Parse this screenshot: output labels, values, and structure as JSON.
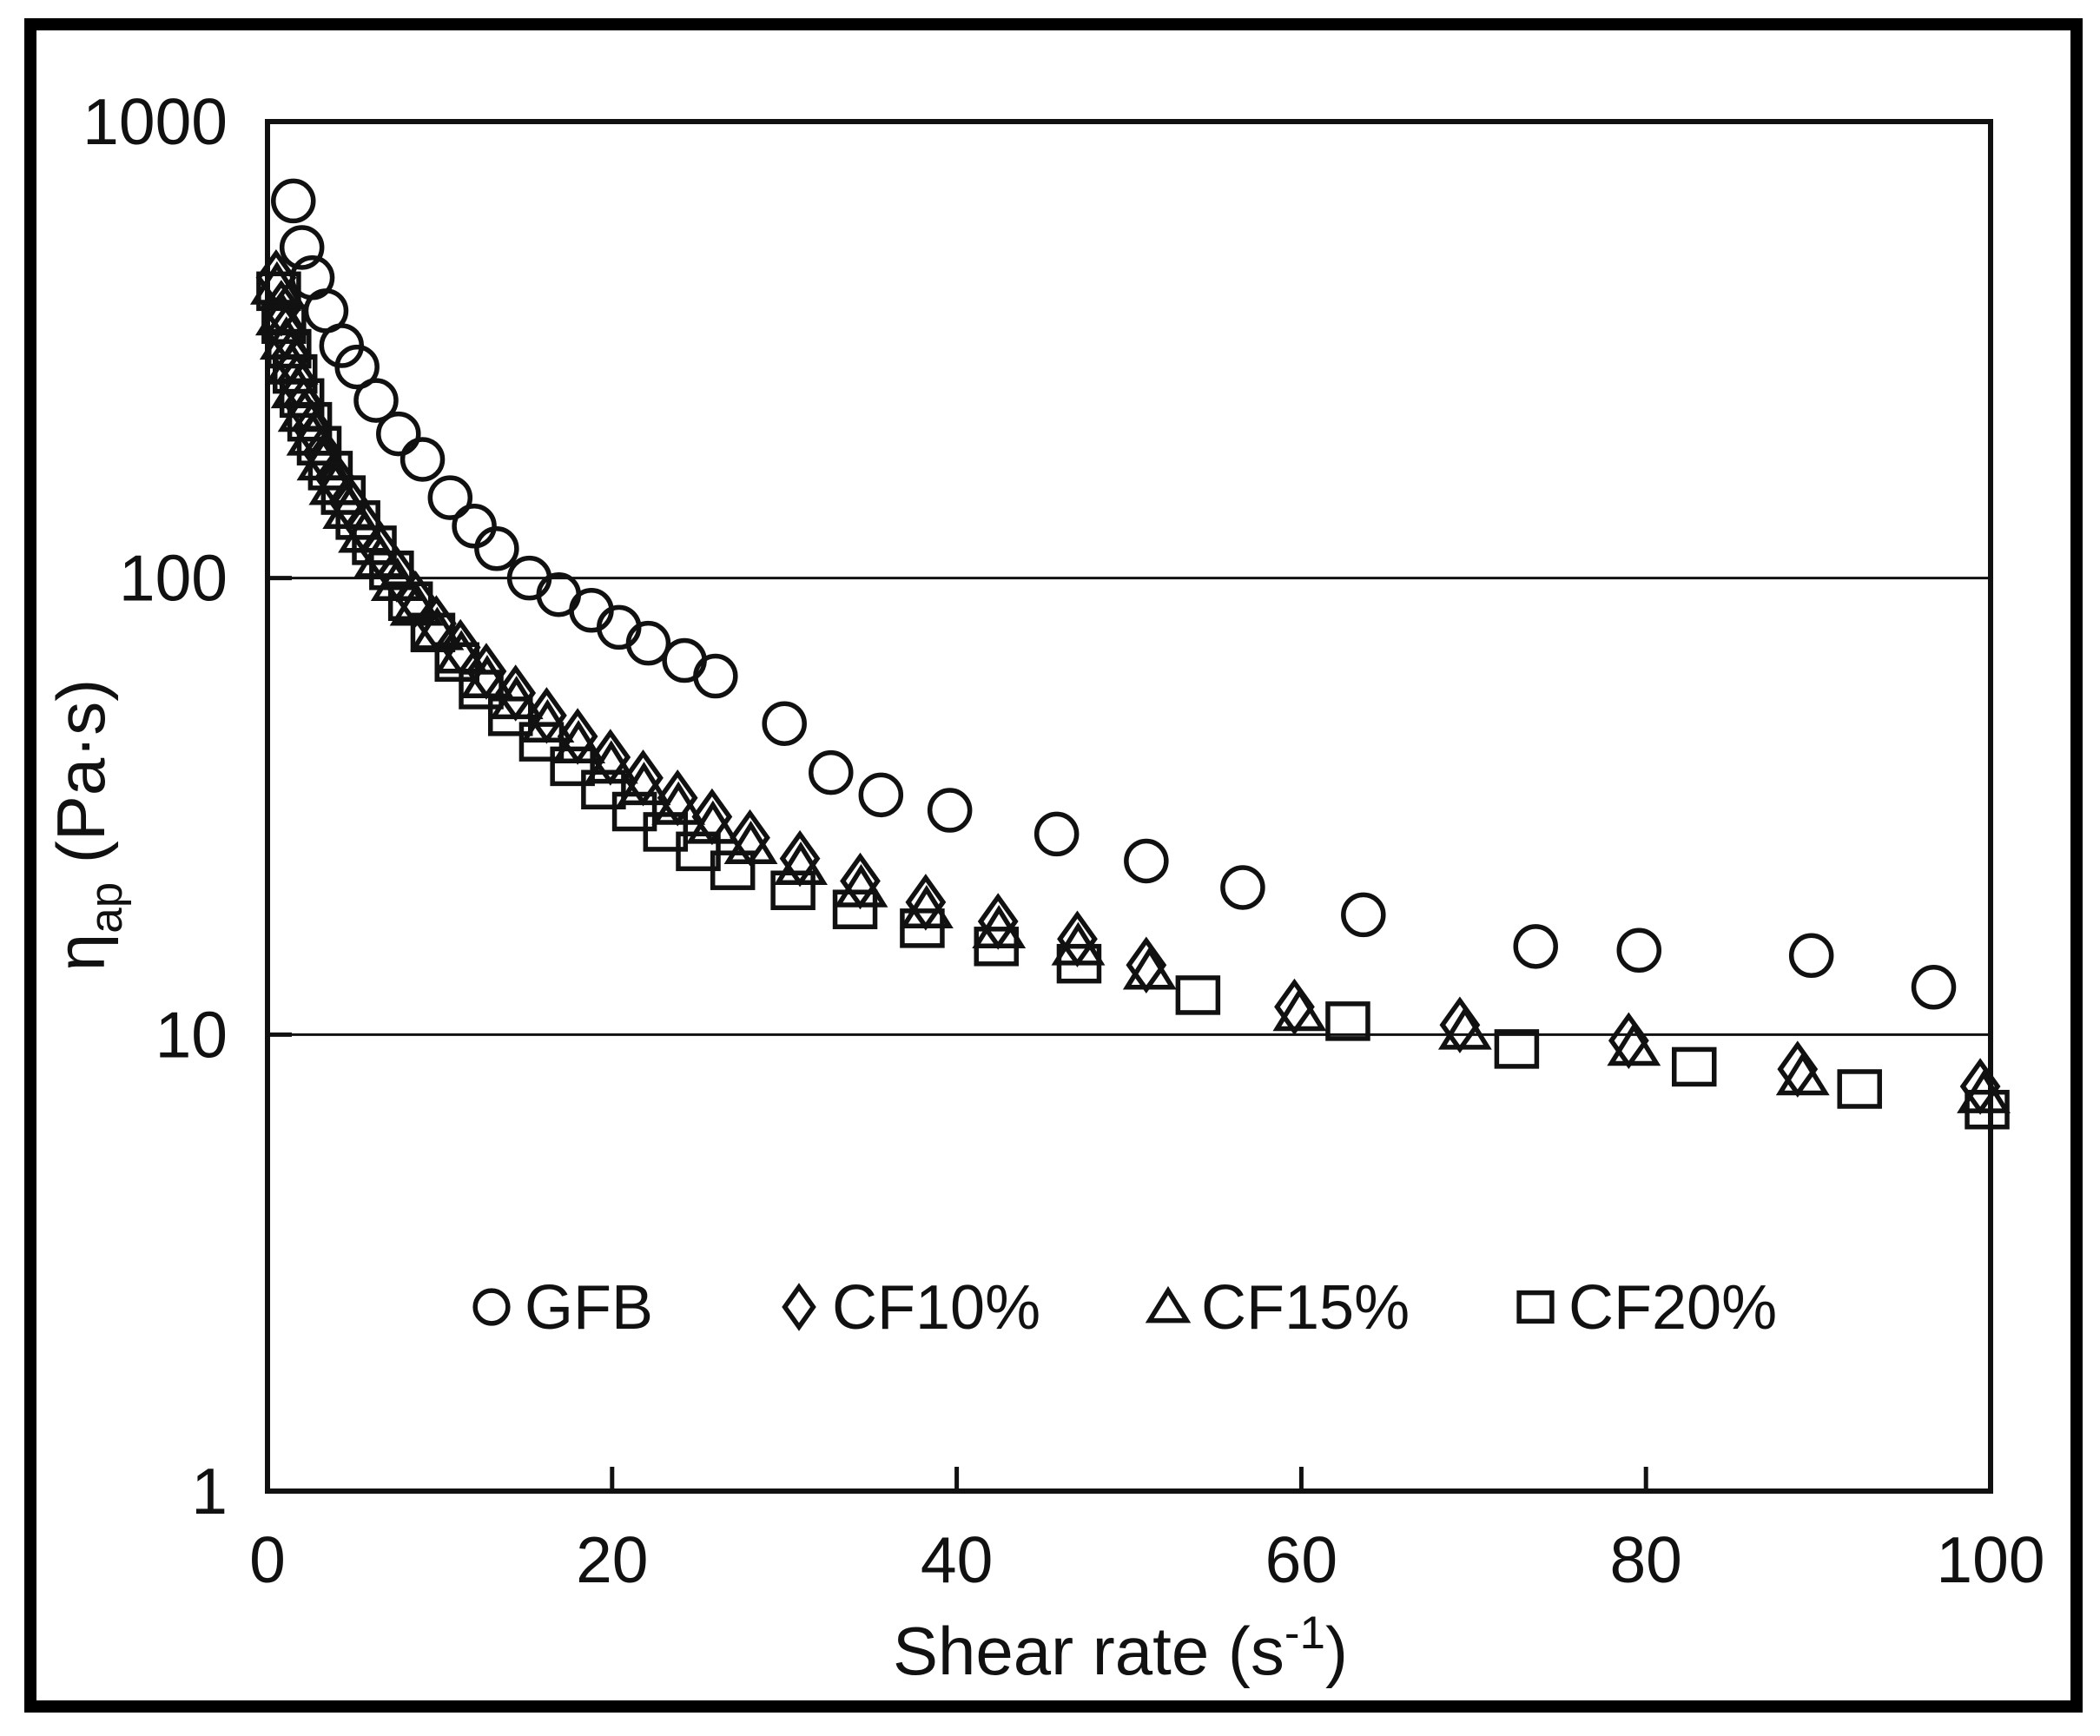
{
  "figure": {
    "background": "#ffffff",
    "frame_color": "#000000",
    "ink_color": "#111111"
  },
  "chart_data": {
    "type": "scatter",
    "title": "",
    "xlabel": {
      "base": "Shear rate (s",
      "sup": "-1",
      "close": ")"
    },
    "ylabel": {
      "base": "η",
      "sub": "ap",
      "rest": " (Pa·s)"
    },
    "x_axis": {
      "scale": "linear",
      "min": 0,
      "max": 100,
      "ticks": [
        0,
        20,
        40,
        60,
        80,
        100
      ],
      "tick_labels": [
        "0",
        "20",
        "40",
        "60",
        "80",
        "100"
      ]
    },
    "y_axis": {
      "scale": "log",
      "min": 1,
      "max": 1000,
      "ticks": [
        1,
        10,
        100,
        1000
      ],
      "tick_labels": [
        "1",
        "10",
        "100",
        "1000"
      ],
      "gridlines": [
        10,
        100
      ]
    },
    "grid": "horizontal-only",
    "legend": {
      "position": "inside-bottom",
      "items": [
        "GFB",
        "CF10%",
        "CF15%",
        "CF20%"
      ]
    },
    "series": [
      {
        "name": "GFB",
        "marker": "circle",
        "points": [
          [
            1.5,
            670
          ],
          [
            2.0,
            530
          ],
          [
            2.6,
            455
          ],
          [
            3.4,
            385
          ],
          [
            4.3,
            323
          ],
          [
            5.2,
            290
          ],
          [
            6.3,
            245
          ],
          [
            7.6,
            207
          ],
          [
            9.0,
            182
          ],
          [
            10.6,
            150
          ],
          [
            12.0,
            130
          ],
          [
            13.3,
            116
          ],
          [
            15.2,
            100
          ],
          [
            16.9,
            92
          ],
          [
            18.8,
            85
          ],
          [
            20.4,
            78
          ],
          [
            22.1,
            72
          ],
          [
            24.2,
            66
          ],
          [
            26.0,
            61
          ],
          [
            30.0,
            48
          ],
          [
            32.7,
            37.5
          ],
          [
            35.6,
            33.5
          ],
          [
            39.6,
            31
          ],
          [
            45.8,
            27.5
          ],
          [
            51.0,
            24
          ],
          [
            56.6,
            21
          ],
          [
            63.6,
            18.3
          ],
          [
            73.6,
            15.6
          ],
          [
            79.6,
            15.3
          ],
          [
            89.6,
            14.9
          ],
          [
            96.7,
            12.7
          ]
        ]
      },
      {
        "name": "CF10%",
        "marker": "diamond",
        "points": [
          [
            0.5,
            455
          ],
          [
            0.8,
            390
          ],
          [
            1.05,
            345
          ],
          [
            1.35,
            305
          ],
          [
            1.7,
            270
          ],
          [
            2.1,
            240
          ],
          [
            2.6,
            213
          ],
          [
            3.2,
            188
          ],
          [
            3.9,
            166
          ],
          [
            4.7,
            147
          ],
          [
            5.6,
            130
          ],
          [
            6.5,
            115
          ],
          [
            7.5,
            102
          ],
          [
            8.6,
            90
          ],
          [
            9.8,
            79.5
          ],
          [
            11.2,
            70.5
          ],
          [
            12.7,
            62.5
          ],
          [
            14.4,
            56
          ],
          [
            16.2,
            50
          ],
          [
            18.0,
            45
          ],
          [
            19.9,
            40.5
          ],
          [
            21.8,
            36.5
          ],
          [
            23.8,
            33
          ],
          [
            25.8,
            30
          ],
          [
            28.0,
            27
          ],
          [
            30.9,
            24.3
          ],
          [
            34.4,
            21.7
          ],
          [
            38.2,
            19.5
          ],
          [
            42.4,
            17.7
          ],
          [
            47.0,
            16.2
          ],
          [
            51.0,
            14.2
          ],
          [
            59.6,
            11.5
          ],
          [
            69.2,
            10.5
          ],
          [
            79.0,
            9.7
          ],
          [
            88.8,
            8.4
          ],
          [
            99.4,
            7.7
          ]
        ]
      },
      {
        "name": "CF15%",
        "marker": "triangle",
        "points": [
          [
            0.55,
            437
          ],
          [
            0.85,
            374
          ],
          [
            1.1,
            331
          ],
          [
            1.4,
            292
          ],
          [
            1.75,
            259
          ],
          [
            2.15,
            230
          ],
          [
            2.65,
            204
          ],
          [
            3.25,
            180
          ],
          [
            3.95,
            159
          ],
          [
            4.75,
            141
          ],
          [
            5.65,
            125
          ],
          [
            6.55,
            110
          ],
          [
            7.55,
            98
          ],
          [
            8.65,
            86.5
          ],
          [
            9.85,
            76.5
          ],
          [
            11.25,
            68
          ],
          [
            12.75,
            60
          ],
          [
            14.45,
            54
          ],
          [
            16.25,
            48
          ],
          [
            18.05,
            43.2
          ],
          [
            19.95,
            39
          ],
          [
            21.85,
            35
          ],
          [
            23.85,
            31.7
          ],
          [
            25.85,
            28.8
          ],
          [
            28.05,
            26
          ],
          [
            30.95,
            23.4
          ],
          [
            34.45,
            20.9
          ],
          [
            38.25,
            18.8
          ],
          [
            42.45,
            17
          ],
          [
            47.05,
            15.6
          ],
          [
            51.2,
            13.8
          ],
          [
            59.9,
            11.2
          ],
          [
            69.5,
            10.2
          ],
          [
            79.3,
            9.4
          ],
          [
            89.1,
            8.1
          ],
          [
            99.6,
            7.4
          ]
        ]
      },
      {
        "name": "CF20%",
        "marker": "square",
        "points": [
          [
            0.65,
            425
          ],
          [
            0.95,
            360
          ],
          [
            1.25,
            318
          ],
          [
            1.6,
            280
          ],
          [
            2.0,
            248
          ],
          [
            2.45,
            220
          ],
          [
            3.0,
            195
          ],
          [
            3.65,
            172
          ],
          [
            4.4,
            152
          ],
          [
            5.25,
            134
          ],
          [
            6.2,
            118
          ],
          [
            7.2,
            104
          ],
          [
            8.3,
            89
          ],
          [
            9.6,
            76
          ],
          [
            11.0,
            65.5
          ],
          [
            12.4,
            57
          ],
          [
            14.1,
            49.8
          ],
          [
            15.9,
            43.8
          ],
          [
            17.7,
            38.7
          ],
          [
            19.5,
            34.4
          ],
          [
            21.3,
            30.8
          ],
          [
            23.1,
            27.8
          ],
          [
            25.0,
            25.2
          ],
          [
            27.0,
            22.9
          ],
          [
            30.5,
            20.7
          ],
          [
            34.1,
            18.8
          ],
          [
            38.0,
            17.1
          ],
          [
            42.3,
            15.6
          ],
          [
            47.1,
            14.3
          ],
          [
            54.0,
            12.2
          ],
          [
            62.7,
            10.7
          ],
          [
            72.5,
            9.3
          ],
          [
            82.8,
            8.5
          ],
          [
            92.4,
            7.6
          ],
          [
            99.8,
            6.85
          ]
        ]
      }
    ]
  }
}
